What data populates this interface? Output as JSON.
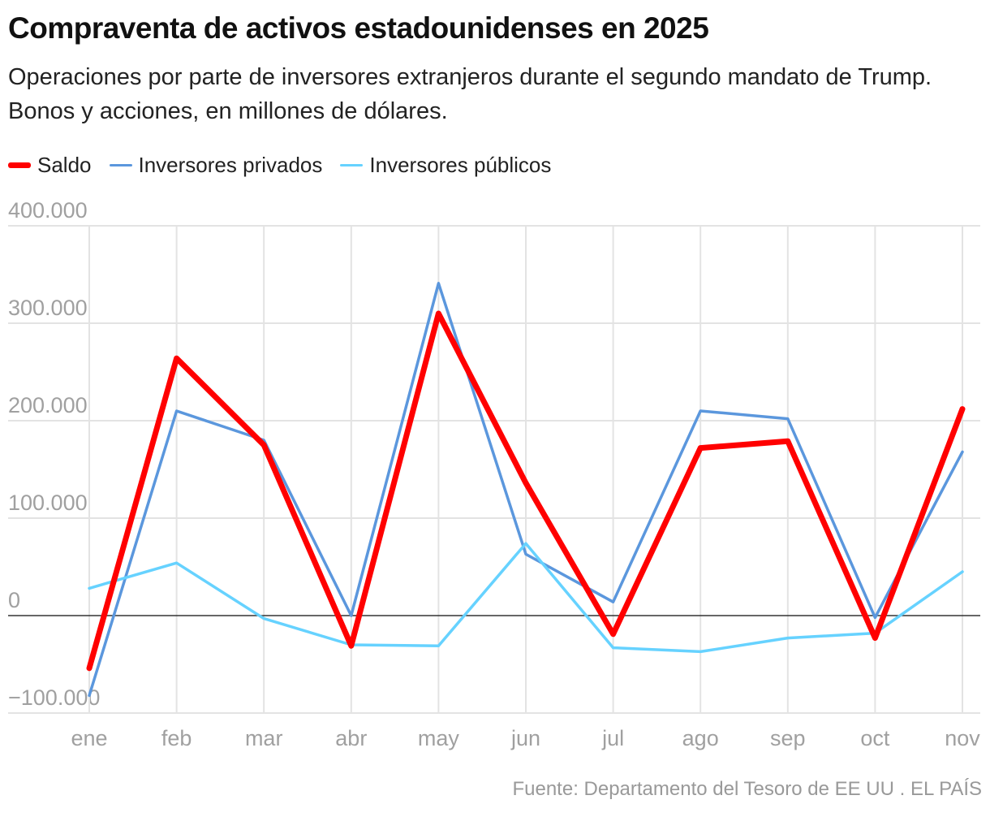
{
  "title": "Compraventa de activos estadounidenses en 2025",
  "subtitle": "Operaciones por parte de inversores extranjeros durante el segundo mandato de Trump. Bonos y acciones, en millones de dólares.",
  "source": "Fuente: Departamento del Tesoro de EE UU . EL PAÍS",
  "chart_data": {
    "type": "line",
    "categories": [
      "ene",
      "feb",
      "mar",
      "abr",
      "may",
      "jun",
      "jul",
      "ago",
      "sep",
      "oct",
      "nov"
    ],
    "ylim": [
      -100000,
      400000
    ],
    "yticks": [
      {
        "v": 400000,
        "label": "400.000"
      },
      {
        "v": 300000,
        "label": "300.000"
      },
      {
        "v": 200000,
        "label": "200.000"
      },
      {
        "v": 100000,
        "label": "100.000"
      },
      {
        "v": 0,
        "label": "0"
      },
      {
        "v": -100000,
        "label": "−100.000"
      }
    ],
    "grid": true,
    "legend": "top-left",
    "series": [
      {
        "name": "Saldo",
        "color": "#ff0000",
        "width": 7,
        "values": [
          -54000,
          264000,
          175000,
          -31000,
          310000,
          136000,
          -19000,
          172000,
          179000,
          -23000,
          212000
        ]
      },
      {
        "name": "Inversores privados",
        "color": "#5b97dd",
        "width": 3.5,
        "values": [
          -82000,
          210000,
          180000,
          0,
          341000,
          63000,
          14000,
          210000,
          202000,
          -2000,
          168000
        ]
      },
      {
        "name": "Inversores públicos",
        "color": "#66d2ff",
        "width": 3.5,
        "values": [
          28000,
          54000,
          -3000,
          -30000,
          -31000,
          74000,
          -33000,
          -37000,
          -23000,
          -18000,
          45000
        ]
      }
    ]
  }
}
